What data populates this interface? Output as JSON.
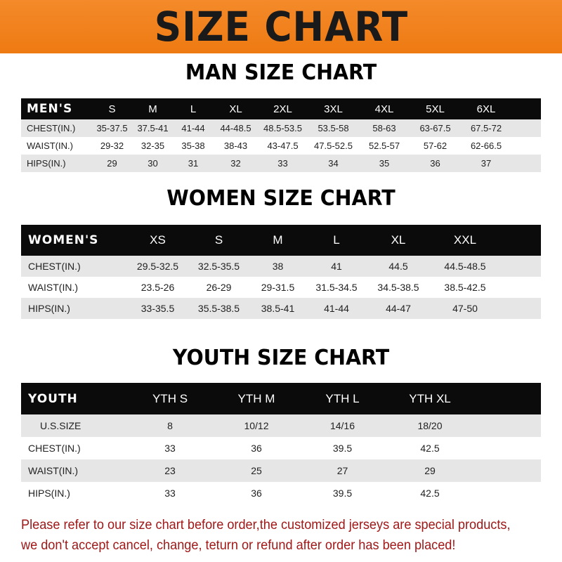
{
  "title": "SIZE CHART",
  "colors": {
    "banner": "#f07f1a",
    "header_row": "#0b0b0b",
    "note": "#a01818"
  },
  "men": {
    "title": "MAN SIZE CHART",
    "header": [
      "MEN'S",
      "S",
      "M",
      "L",
      "XL",
      "2XL",
      "3XL",
      "4XL",
      "5XL",
      "6XL"
    ],
    "rows": [
      [
        "CHEST(IN.)",
        "35-37.5",
        "37.5-41",
        "41-44",
        "44-48.5",
        "48.5-53.5",
        "53.5-58",
        "58-63",
        "63-67.5",
        "67.5-72"
      ],
      [
        "WAIST(IN.)",
        "29-32",
        "32-35",
        "35-38",
        "38-43",
        "43-47.5",
        "47.5-52.5",
        "52.5-57",
        "57-62",
        "62-66.5"
      ],
      [
        "HIPS(IN.)",
        "29",
        "30",
        "31",
        "32",
        "33",
        "34",
        "35",
        "36",
        "37"
      ]
    ]
  },
  "women": {
    "title": "WOMEN SIZE CHART",
    "header": [
      "WOMEN'S",
      "XS",
      "S",
      "M",
      "L",
      "XL",
      "XXL"
    ],
    "rows": [
      [
        "CHEST(IN.)",
        "29.5-32.5",
        "32.5-35.5",
        "38",
        "41",
        "44.5",
        "44.5-48.5"
      ],
      [
        "WAIST(IN.)",
        "23.5-26",
        "26-29",
        "29-31.5",
        "31.5-34.5",
        "34.5-38.5",
        "38.5-42.5"
      ],
      [
        "HIPS(IN.)",
        "33-35.5",
        "35.5-38.5",
        "38.5-41",
        "41-44",
        "44-47",
        "47-50"
      ]
    ]
  },
  "youth": {
    "title": "YOUTH SIZE CHART",
    "header": [
      "YOUTH",
      "YTH S",
      "YTH M",
      "YTH L",
      "YTH XL"
    ],
    "rows": [
      [
        "U.S.SIZE",
        "8",
        "10/12",
        "14/16",
        "18/20"
      ],
      [
        "CHEST(IN.)",
        "33",
        "36",
        "39.5",
        "42.5"
      ],
      [
        "WAIST(IN.)",
        "23",
        "25",
        "27",
        "29"
      ],
      [
        "HIPS(IN.)",
        "33",
        "36",
        "39.5",
        "42.5"
      ]
    ]
  },
  "note": [
    "Please refer to our size chart before order,the customized jerseys are special products,",
    "we don't accept cancel, change, teturn or refund after order has been placed!"
  ]
}
